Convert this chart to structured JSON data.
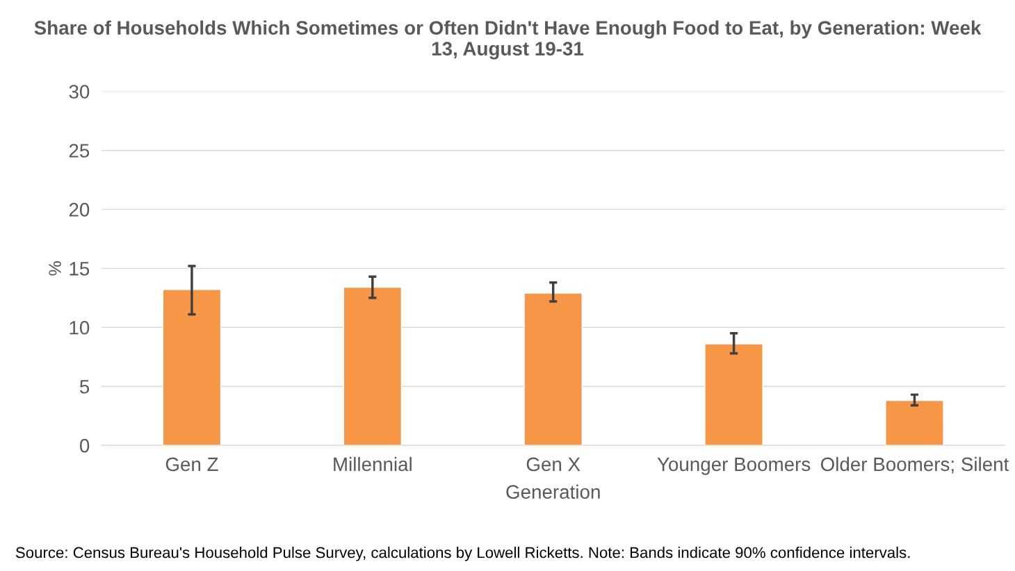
{
  "chart_data": {
    "type": "bar",
    "title": "Share of Households Which Sometimes or Often Didn't Have Enough Food to Eat, by Generation: Week 13, August 19-31",
    "xlabel": "Generation",
    "ylabel": "%",
    "categories": [
      "Gen Z",
      "Millennial",
      "Gen X",
      "Younger Boomers",
      "Older Boomers; Silent"
    ],
    "series": [
      {
        "color": "#f79646",
        "values": [
          13.2,
          13.4,
          12.9,
          8.6,
          3.8
        ],
        "errors": [
          [
            11.1,
            15.2
          ],
          [
            12.5,
            14.3
          ],
          [
            12.2,
            13.8
          ],
          [
            7.8,
            9.5
          ],
          [
            3.4,
            4.3
          ]
        ]
      }
    ],
    "ylim": [
      0,
      30
    ],
    "yticks": [
      0,
      5,
      10,
      15,
      20,
      25,
      30
    ],
    "grid": "y",
    "legend": false,
    "annotations": [
      "Source: Census Bureau's Household Pulse Survey, calculations by Lowell Ricketts. Note: Bands indicate 90% confidence intervals."
    ]
  }
}
